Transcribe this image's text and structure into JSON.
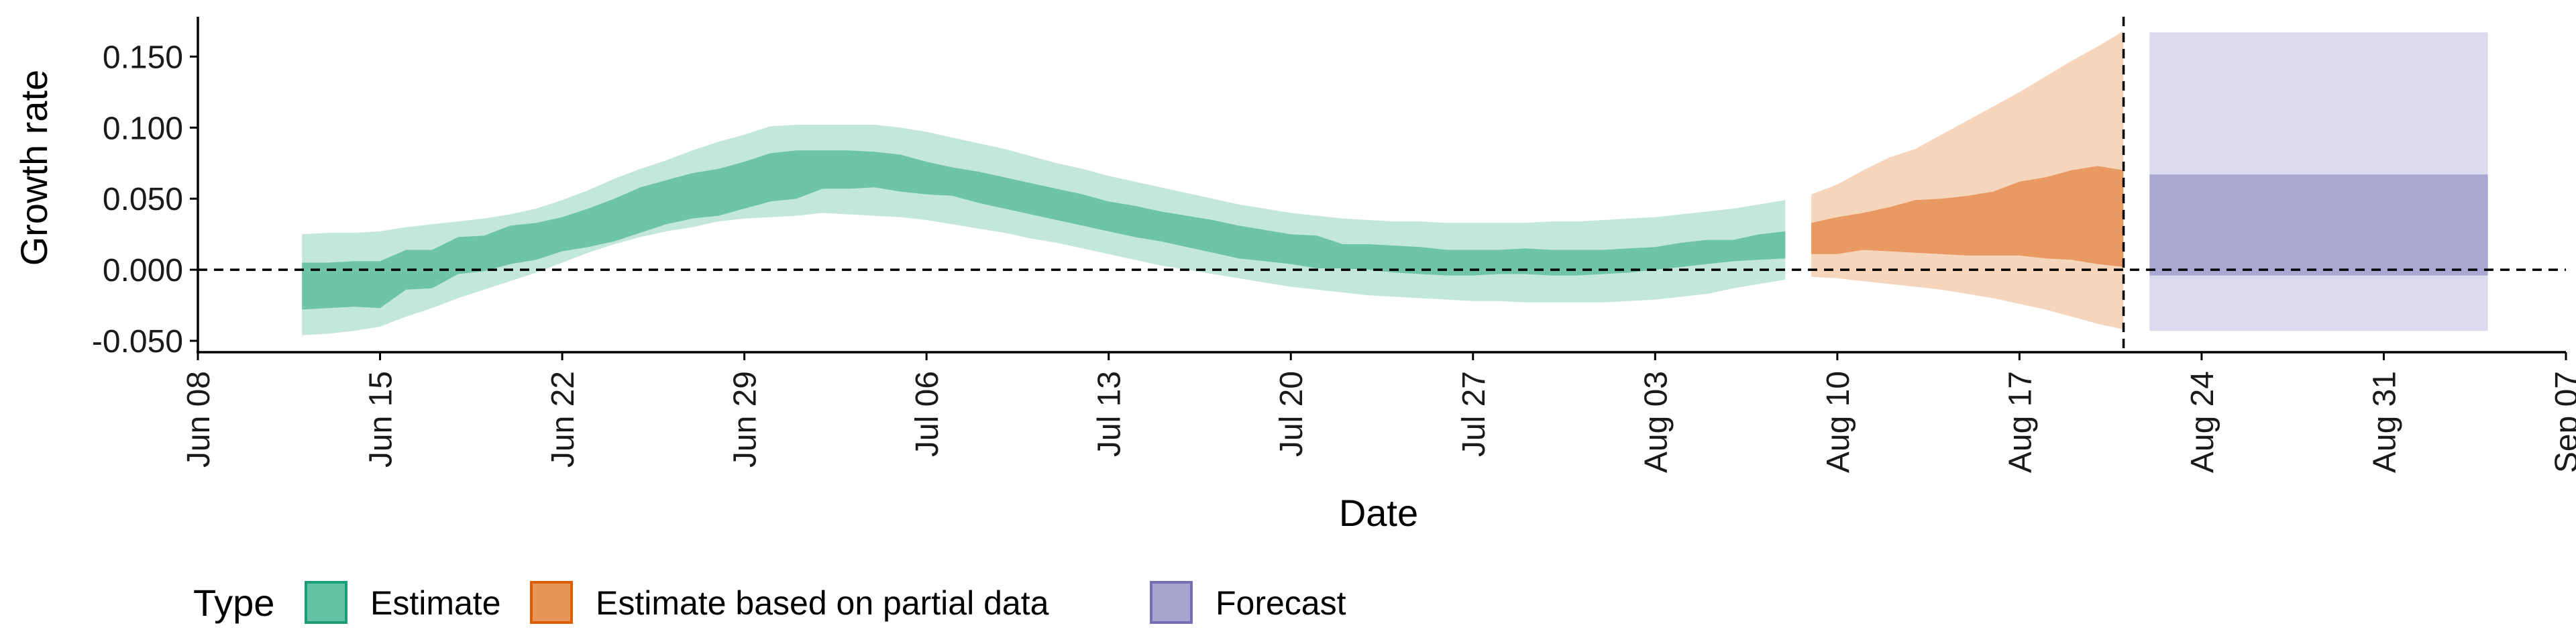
{
  "chart_data": {
    "type": "area",
    "xlabel": "Date",
    "ylabel": "Growth rate",
    "x_ticks": [
      "Jun 08",
      "Jun 15",
      "Jun 22",
      "Jun 29",
      "Jul 06",
      "Jul 13",
      "Jul 20",
      "Jul 27",
      "Aug 03",
      "Aug 10",
      "Aug 17",
      "Aug 24",
      "Aug 31",
      "Sep 07"
    ],
    "x_range": [
      "2020-06-08",
      "2020-09-07"
    ],
    "y_ticks": [
      "0.150",
      "0.100",
      "0.050",
      "0.000",
      "-0.050"
    ],
    "ylim": [
      -0.058,
      0.178
    ],
    "reference_line_y": 0.0,
    "vertical_reference_date": "2020-08-21",
    "legend": {
      "title": "Type",
      "position": "bottom",
      "items": [
        {
          "label": "Estimate",
          "fill": "#66c2a5",
          "stroke": "#1b9e77"
        },
        {
          "label": "Estimate based on partial data",
          "fill": "#e8955a",
          "stroke": "#d95f02"
        },
        {
          "label": "Forecast",
          "fill": "#a8a5d0",
          "stroke": "#7570b3"
        }
      ]
    },
    "colors": {
      "estimate_outer": "#c3e7dc",
      "estimate_inner": "#6dc4a8",
      "partial_outer": "#f6d5bd",
      "partial_inner": "#e89a62",
      "forecast_outer": "#dcdbee",
      "forecast_inner": "#aaa7d3"
    },
    "series": [
      {
        "name": "Estimate",
        "dates": [
          "2020-06-12",
          "2020-06-13",
          "2020-06-14",
          "2020-06-15",
          "2020-06-16",
          "2020-06-17",
          "2020-06-18",
          "2020-06-19",
          "2020-06-20",
          "2020-06-21",
          "2020-06-22",
          "2020-06-23",
          "2020-06-24",
          "2020-06-25",
          "2020-06-26",
          "2020-06-27",
          "2020-06-28",
          "2020-06-29",
          "2020-06-30",
          "2020-07-01",
          "2020-07-02",
          "2020-07-03",
          "2020-07-04",
          "2020-07-05",
          "2020-07-06",
          "2020-07-07",
          "2020-07-08",
          "2020-07-09",
          "2020-07-10",
          "2020-07-11",
          "2020-07-12",
          "2020-07-13",
          "2020-07-14",
          "2020-07-15",
          "2020-07-16",
          "2020-07-17",
          "2020-07-18",
          "2020-07-19",
          "2020-07-20",
          "2020-07-21",
          "2020-07-22",
          "2020-07-23",
          "2020-07-24",
          "2020-07-25",
          "2020-07-26",
          "2020-07-27",
          "2020-07-28",
          "2020-07-29",
          "2020-07-30",
          "2020-07-31",
          "2020-08-01",
          "2020-08-02",
          "2020-08-03",
          "2020-08-04",
          "2020-08-05",
          "2020-08-06",
          "2020-08-07",
          "2020-08-08"
        ],
        "lower_90": [
          -0.046,
          -0.045,
          -0.043,
          -0.04,
          -0.033,
          -0.027,
          -0.02,
          -0.014,
          -0.008,
          -0.002,
          0.005,
          0.012,
          0.018,
          0.023,
          0.027,
          0.03,
          0.034,
          0.036,
          0.037,
          0.038,
          0.04,
          0.039,
          0.038,
          0.037,
          0.035,
          0.032,
          0.029,
          0.026,
          0.022,
          0.019,
          0.015,
          0.011,
          0.007,
          0.003,
          0.0,
          -0.003,
          -0.006,
          -0.009,
          -0.012,
          -0.014,
          -0.016,
          -0.018,
          -0.019,
          -0.02,
          -0.021,
          -0.022,
          -0.022,
          -0.023,
          -0.023,
          -0.023,
          -0.023,
          -0.022,
          -0.021,
          -0.019,
          -0.017,
          -0.013,
          -0.01,
          -0.007
        ],
        "lower_50": [
          -0.028,
          -0.027,
          -0.026,
          -0.027,
          -0.014,
          -0.013,
          -0.003,
          -0.001,
          0.004,
          0.007,
          0.013,
          0.016,
          0.02,
          0.026,
          0.032,
          0.036,
          0.038,
          0.043,
          0.048,
          0.05,
          0.057,
          0.057,
          0.058,
          0.055,
          0.053,
          0.052,
          0.047,
          0.043,
          0.039,
          0.035,
          0.031,
          0.027,
          0.023,
          0.02,
          0.016,
          0.012,
          0.008,
          0.006,
          0.004,
          0.001,
          0.001,
          0.0,
          -0.002,
          -0.003,
          -0.004,
          -0.004,
          -0.003,
          -0.003,
          -0.004,
          -0.004,
          -0.003,
          -0.002,
          0.0,
          0.002,
          0.004,
          0.006,
          0.007,
          0.008
        ],
        "upper_50": [
          0.005,
          0.005,
          0.006,
          0.006,
          0.014,
          0.014,
          0.023,
          0.024,
          0.031,
          0.033,
          0.037,
          0.043,
          0.05,
          0.058,
          0.063,
          0.068,
          0.071,
          0.076,
          0.082,
          0.084,
          0.084,
          0.084,
          0.083,
          0.081,
          0.076,
          0.072,
          0.069,
          0.065,
          0.061,
          0.057,
          0.053,
          0.048,
          0.045,
          0.041,
          0.038,
          0.035,
          0.031,
          0.028,
          0.025,
          0.024,
          0.018,
          0.018,
          0.017,
          0.016,
          0.014,
          0.014,
          0.014,
          0.015,
          0.014,
          0.014,
          0.014,
          0.015,
          0.016,
          0.019,
          0.021,
          0.021,
          0.025,
          0.027
        ],
        "upper_90": [
          0.025,
          0.026,
          0.026,
          0.027,
          0.03,
          0.032,
          0.034,
          0.036,
          0.039,
          0.043,
          0.049,
          0.056,
          0.064,
          0.071,
          0.077,
          0.084,
          0.09,
          0.095,
          0.101,
          0.102,
          0.102,
          0.102,
          0.102,
          0.1,
          0.097,
          0.093,
          0.089,
          0.085,
          0.08,
          0.075,
          0.071,
          0.066,
          0.062,
          0.058,
          0.054,
          0.05,
          0.046,
          0.043,
          0.04,
          0.038,
          0.036,
          0.035,
          0.034,
          0.034,
          0.033,
          0.033,
          0.033,
          0.033,
          0.034,
          0.034,
          0.035,
          0.036,
          0.037,
          0.039,
          0.041,
          0.043,
          0.046,
          0.049
        ]
      },
      {
        "name": "Estimate based on partial data",
        "dates": [
          "2020-08-09",
          "2020-08-10",
          "2020-08-11",
          "2020-08-12",
          "2020-08-13",
          "2020-08-14",
          "2020-08-15",
          "2020-08-16",
          "2020-08-17",
          "2020-08-18",
          "2020-08-19",
          "2020-08-20",
          "2020-08-21"
        ],
        "lower_90": [
          -0.005,
          -0.006,
          -0.008,
          -0.01,
          -0.012,
          -0.014,
          -0.017,
          -0.02,
          -0.024,
          -0.028,
          -0.033,
          -0.038,
          -0.042
        ],
        "lower_50": [
          0.011,
          0.011,
          0.014,
          0.013,
          0.012,
          0.011,
          0.01,
          0.01,
          0.01,
          0.008,
          0.007,
          0.004,
          0.002
        ],
        "upper_50": [
          0.033,
          0.037,
          0.04,
          0.044,
          0.049,
          0.05,
          0.052,
          0.055,
          0.062,
          0.065,
          0.07,
          0.073,
          0.07
        ],
        "upper_90": [
          0.053,
          0.06,
          0.07,
          0.079,
          0.085,
          0.095,
          0.105,
          0.115,
          0.125,
          0.136,
          0.147,
          0.157,
          0.168
        ]
      },
      {
        "name": "Forecast",
        "start": "2020-08-22",
        "end": "2020-09-04",
        "lower_90": -0.043,
        "lower_50": -0.004,
        "upper_50": 0.067,
        "upper_90": 0.167
      }
    ]
  }
}
